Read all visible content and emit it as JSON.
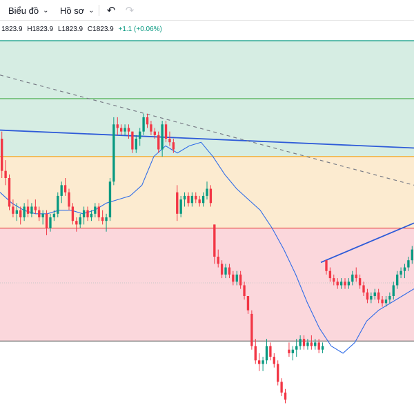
{
  "toolbar": {
    "chart_menu_label": "Biểu đồ",
    "profile_menu_label": "Hồ sơ",
    "undo_icon": "undo-icon",
    "redo_icon": "redo-icon"
  },
  "legend": {
    "open": "1823.9",
    "high": "H1823.9",
    "low": "L1823.9",
    "close": "C1823.9",
    "change": "+1.1 (+0.06%)"
  },
  "colors": {
    "up": "#089981",
    "down": "#f23645",
    "zone_green": "#d6ede3",
    "zone_yellow": "#fcebd0",
    "zone_red": "#fbd7dc",
    "trendline": "#2e5bd8",
    "ma": "#2f6ce8"
  },
  "chart_data": {
    "type": "candlestick",
    "price_range": [
      1780,
      1835
    ],
    "bands": [
      {
        "name": "zone-1",
        "from": 1832.2,
        "to": 1824.1,
        "color": "#d6ede3",
        "edge": "#089981"
      },
      {
        "name": "zone-2",
        "from": 1824.1,
        "to": 1816.0,
        "color": "#d6ede3",
        "edge": "#4caf50"
      },
      {
        "name": "zone-3",
        "from": 1816.0,
        "to": 1806.0,
        "color": "#fcebd0",
        "edge": "#f5a623"
      },
      {
        "name": "zone-4",
        "from": 1806.0,
        "to": 1790.2,
        "color": "#fbd7dc",
        "edge": "#e53935"
      }
    ],
    "candles": [
      [
        1818.5,
        1819.5,
        1813.0,
        1814.0
      ],
      [
        1814.0,
        1815.5,
        1812.0,
        1813.0
      ],
      [
        1813.0,
        1813.5,
        1808.5,
        1809.0
      ],
      [
        1809.0,
        1810.0,
        1807.5,
        1808.0
      ],
      [
        1808.0,
        1809.5,
        1807.0,
        1808.5
      ],
      [
        1808.5,
        1809.0,
        1806.5,
        1807.5
      ],
      [
        1807.5,
        1809.5,
        1807.0,
        1809.0
      ],
      [
        1809.0,
        1810.0,
        1807.5,
        1808.0
      ],
      [
        1808.0,
        1809.5,
        1807.5,
        1809.0
      ],
      [
        1809.0,
        1810.0,
        1808.0,
        1808.5
      ],
      [
        1808.5,
        1809.0,
        1807.0,
        1807.5
      ],
      [
        1807.5,
        1808.5,
        1806.5,
        1808.0
      ],
      [
        1808.0,
        1808.5,
        1805.0,
        1806.0
      ],
      [
        1806.0,
        1808.0,
        1805.5,
        1807.5
      ],
      [
        1807.5,
        1808.5,
        1807.0,
        1808.0
      ],
      [
        1808.0,
        1811.0,
        1807.5,
        1810.5
      ],
      [
        1810.5,
        1812.5,
        1809.5,
        1812.0
      ],
      [
        1812.0,
        1813.0,
        1810.5,
        1811.0
      ],
      [
        1811.0,
        1811.5,
        1808.5,
        1809.0
      ],
      [
        1809.0,
        1809.5,
        1806.5,
        1807.0
      ],
      [
        1807.0,
        1807.5,
        1805.5,
        1806.5
      ],
      [
        1806.5,
        1808.0,
        1806.0,
        1807.5
      ],
      [
        1807.5,
        1809.0,
        1806.5,
        1808.5
      ],
      [
        1808.5,
        1809.0,
        1807.0,
        1807.5
      ],
      [
        1807.5,
        1808.5,
        1807.0,
        1808.0
      ],
      [
        1808.0,
        1809.5,
        1807.5,
        1809.0
      ],
      [
        1809.0,
        1809.5,
        1807.0,
        1807.5
      ],
      [
        1807.5,
        1808.5,
        1806.5,
        1807.0
      ],
      [
        1807.0,
        1808.0,
        1805.5,
        1807.5
      ],
      [
        1807.5,
        1813.0,
        1807.0,
        1812.5
      ],
      [
        1812.5,
        1821.5,
        1812.0,
        1820.5
      ],
      [
        1820.5,
        1821.5,
        1819.0,
        1820.0
      ],
      [
        1820.0,
        1820.5,
        1819.0,
        1819.5
      ],
      [
        1819.5,
        1820.5,
        1819.0,
        1820.0
      ],
      [
        1820.0,
        1820.5,
        1818.5,
        1819.5
      ],
      [
        1819.5,
        1819.5,
        1816.5,
        1817.0
      ],
      [
        1817.0,
        1819.0,
        1816.5,
        1818.5
      ],
      [
        1818.5,
        1820.0,
        1817.5,
        1819.5
      ],
      [
        1819.5,
        1822.0,
        1819.0,
        1821.5
      ],
      [
        1821.5,
        1822.0,
        1820.0,
        1820.5
      ],
      [
        1820.5,
        1821.0,
        1819.0,
        1819.5
      ],
      [
        1819.5,
        1820.0,
        1818.5,
        1819.0
      ],
      [
        1819.0,
        1819.5,
        1816.5,
        1817.0
      ],
      [
        1817.0,
        1821.0,
        1816.0,
        1820.5
      ],
      [
        1820.5,
        1821.0,
        1818.0,
        1818.5
      ],
      [
        1818.5,
        1819.5,
        1817.5,
        1818.0
      ],
      [
        1818.0,
        1818.5,
        1816.5,
        1817.0
      ],
      [
        1811.0,
        1812.0,
        1807.0,
        1808.0
      ],
      [
        1808.0,
        1810.5,
        1807.5,
        1810.0
      ],
      [
        1810.0,
        1811.0,
        1809.0,
        1810.5
      ],
      [
        1810.5,
        1811.0,
        1809.0,
        1809.5
      ],
      [
        1809.5,
        1811.0,
        1809.0,
        1810.5
      ],
      [
        1810.5,
        1811.0,
        1809.5,
        1810.0
      ],
      [
        1810.0,
        1810.5,
        1809.0,
        1809.5
      ],
      [
        1809.5,
        1811.0,
        1809.0,
        1810.5
      ],
      [
        1810.5,
        1812.5,
        1810.0,
        1811.5
      ],
      [
        1811.5,
        1812.0,
        1809.0,
        1809.5
      ],
      [
        1806.5,
        1806.5,
        1801.0,
        1802.0
      ],
      [
        1802.0,
        1803.0,
        1800.5,
        1801.0
      ],
      [
        1801.0,
        1801.5,
        1799.0,
        1799.5
      ],
      [
        1799.5,
        1801.0,
        1799.0,
        1800.5
      ],
      [
        1800.5,
        1801.0,
        1799.0,
        1799.5
      ],
      [
        1799.5,
        1800.0,
        1798.0,
        1798.5
      ],
      [
        1798.5,
        1800.0,
        1798.0,
        1799.5
      ],
      [
        1799.5,
        1800.0,
        1797.5,
        1798.0
      ],
      [
        1798.0,
        1798.5,
        1796.0,
        1796.5
      ],
      [
        1796.5,
        1796.5,
        1794.0,
        1794.5
      ],
      [
        1794.0,
        1794.5,
        1789.0,
        1789.5
      ],
      [
        1789.5,
        1790.5,
        1787.0,
        1787.5
      ],
      [
        1787.5,
        1788.5,
        1786.0,
        1787.0
      ],
      [
        1787.0,
        1788.0,
        1786.0,
        1787.5
      ],
      [
        1787.5,
        1790.5,
        1787.0,
        1789.5
      ],
      [
        1789.5,
        1790.0,
        1787.5,
        1788.0
      ],
      [
        1788.0,
        1788.5,
        1786.5,
        1787.0
      ],
      [
        1787.0,
        1787.5,
        1784.0,
        1784.5
      ],
      [
        1784.5,
        1785.0,
        1782.5,
        1783.0
      ],
      [
        1783.0,
        1783.5,
        1781.5,
        1782.0
      ],
      [
        1789.0,
        1790.0,
        1788.0,
        1788.5
      ],
      [
        1788.5,
        1789.5,
        1787.5,
        1789.0
      ],
      [
        1789.0,
        1790.5,
        1788.0,
        1789.5
      ],
      [
        1789.5,
        1791.0,
        1789.0,
        1790.5
      ],
      [
        1790.5,
        1791.0,
        1789.0,
        1789.5
      ],
      [
        1789.5,
        1790.5,
        1789.0,
        1790.0
      ],
      [
        1790.0,
        1791.0,
        1789.0,
        1789.5
      ],
      [
        1789.5,
        1790.5,
        1789.0,
        1790.0
      ],
      [
        1790.0,
        1790.5,
        1788.5,
        1789.0
      ],
      [
        1789.0,
        1790.0,
        1788.5,
        1789.5
      ],
      [
        1801.5,
        1801.5,
        1799.5,
        1800.0
      ],
      [
        1800.0,
        1800.5,
        1798.5,
        1799.0
      ],
      [
        1799.0,
        1799.5,
        1798.0,
        1798.5
      ],
      [
        1798.5,
        1799.0,
        1797.5,
        1798.0
      ],
      [
        1798.0,
        1799.0,
        1797.5,
        1798.5
      ],
      [
        1798.5,
        1799.0,
        1797.5,
        1798.0
      ],
      [
        1798.0,
        1799.0,
        1797.5,
        1798.5
      ],
      [
        1798.5,
        1800.0,
        1798.0,
        1799.5
      ],
      [
        1799.5,
        1800.5,
        1798.5,
        1799.0
      ],
      [
        1799.0,
        1799.5,
        1797.5,
        1798.0
      ],
      [
        1798.0,
        1798.5,
        1796.5,
        1797.0
      ],
      [
        1797.0,
        1797.5,
        1795.5,
        1796.0
      ],
      [
        1796.0,
        1797.0,
        1795.5,
        1796.5
      ],
      [
        1796.5,
        1797.5,
        1796.0,
        1797.0
      ],
      [
        1797.0,
        1797.5,
        1795.5,
        1796.0
      ],
      [
        1796.0,
        1796.5,
        1795.0,
        1795.5
      ],
      [
        1795.5,
        1796.5,
        1795.0,
        1796.0
      ],
      [
        1796.0,
        1797.0,
        1795.5,
        1796.5
      ],
      [
        1796.5,
        1798.5,
        1796.0,
        1798.0
      ],
      [
        1798.0,
        1800.0,
        1797.5,
        1799.5
      ],
      [
        1799.5,
        1800.5,
        1799.0,
        1800.0
      ],
      [
        1800.0,
        1801.0,
        1799.0,
        1800.5
      ],
      [
        1800.5,
        1802.0,
        1800.0,
        1801.5
      ],
      [
        1801.5,
        1803.5,
        1801.0,
        1803.0
      ]
    ],
    "moving_average": [
      1811.0,
      1809.5,
      1808.5,
      1808.0,
      1808.0,
      1808.5,
      1808.5,
      1808.0,
      1808.5,
      1809.5,
      1810.0,
      1810.5,
      1812.0,
      1816.0,
      1817.5,
      1816.5,
      1817.5,
      1818.0,
      1816.0,
      1813.5,
      1811.5,
      1810.0,
      1808.5,
      1806.0,
      1803.0,
      1799.5,
      1795.5,
      1792.0,
      1789.5,
      1788.5,
      1790.0,
      1793.0,
      1794.5,
      1795.5,
      1796.5,
      1797.5
    ],
    "trendlines": [
      {
        "name": "upper-trendline",
        "from": [
          0,
          1819.7
        ],
        "to": [
          1,
          1817.2
        ]
      },
      {
        "name": "dashed-trendline",
        "from": [
          0,
          1827.4
        ],
        "to": [
          1,
          1812.0
        ]
      },
      {
        "name": "rising-trendline",
        "from": [
          0.775,
          1801.2
        ],
        "to": [
          1,
          1806.7
        ]
      }
    ]
  }
}
